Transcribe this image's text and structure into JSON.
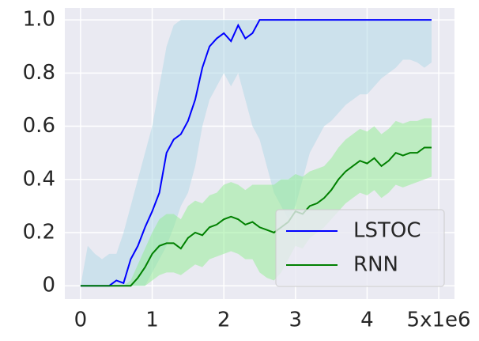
{
  "chart_data": {
    "type": "line",
    "x": [
      0,
      0.1,
      0.2,
      0.3,
      0.4,
      0.5,
      0.6,
      0.7,
      0.8,
      0.9,
      1.0,
      1.1,
      1.2,
      1.3,
      1.4,
      1.5,
      1.6,
      1.7,
      1.8,
      1.9,
      2.0,
      2.1,
      2.2,
      2.3,
      2.4,
      2.5,
      2.6,
      2.7,
      2.8,
      2.9,
      3.0,
      3.1,
      3.2,
      3.3,
      3.4,
      3.5,
      3.6,
      3.7,
      3.8,
      3.9,
      4.0,
      4.1,
      4.2,
      4.3,
      4.4,
      4.5,
      4.6,
      4.7,
      4.8,
      4.9
    ],
    "series": [
      {
        "name": "LSTOC",
        "color": "#0000ff",
        "band_color": "#add8e6",
        "values": [
          0,
          0,
          0,
          0,
          0,
          0.02,
          0.01,
          0.1,
          0.15,
          0.22,
          0.28,
          0.35,
          0.5,
          0.55,
          0.57,
          0.62,
          0.7,
          0.82,
          0.9,
          0.93,
          0.95,
          0.92,
          0.98,
          0.93,
          0.95,
          1,
          1,
          1,
          1,
          1,
          1,
          1,
          1,
          1,
          1,
          1,
          1,
          1,
          1,
          1,
          1,
          1,
          1,
          1,
          1,
          1,
          1,
          1,
          1,
          1
        ],
        "lower": [
          0,
          0,
          0,
          0,
          0,
          0,
          0,
          0,
          0,
          0,
          0.05,
          0.1,
          0.15,
          0.22,
          0.3,
          0.35,
          0.45,
          0.6,
          0.7,
          0.75,
          0.8,
          0.75,
          0.8,
          0.7,
          0.6,
          0.55,
          0.45,
          0.35,
          0.3,
          0.25,
          0.3,
          0.4,
          0.5,
          0.55,
          0.6,
          0.62,
          0.65,
          0.68,
          0.7,
          0.72,
          0.72,
          0.75,
          0.78,
          0.8,
          0.82,
          0.85,
          0.85,
          0.84,
          0.82,
          0.84
        ],
        "upper": [
          0,
          0.15,
          0.12,
          0.1,
          0.12,
          0.12,
          0.2,
          0.3,
          0.4,
          0.5,
          0.6,
          0.75,
          0.9,
          0.98,
          1,
          1,
          1,
          1,
          1,
          1,
          1,
          1,
          1,
          1,
          1,
          1,
          1,
          1,
          1,
          1,
          1,
          1,
          1,
          1,
          1,
          1,
          1,
          1,
          1,
          1,
          1,
          1,
          1,
          1,
          1,
          1,
          1,
          1,
          1,
          1
        ]
      },
      {
        "name": "RNN",
        "color": "#008000",
        "band_color": "#90ee90",
        "values": [
          0,
          0,
          0,
          0,
          0,
          0,
          0,
          0,
          0.03,
          0.07,
          0.12,
          0.15,
          0.16,
          0.16,
          0.14,
          0.18,
          0.2,
          0.19,
          0.22,
          0.23,
          0.25,
          0.26,
          0.25,
          0.23,
          0.24,
          0.22,
          0.21,
          0.2,
          0.22,
          0.24,
          0.28,
          0.27,
          0.3,
          0.31,
          0.33,
          0.36,
          0.4,
          0.43,
          0.45,
          0.47,
          0.46,
          0.48,
          0.45,
          0.47,
          0.5,
          0.49,
          0.5,
          0.5,
          0.52,
          0.52
        ],
        "lower": [
          0,
          0,
          0,
          0,
          0,
          0,
          0,
          0,
          0,
          0,
          0.02,
          0.04,
          0.05,
          0.05,
          0.04,
          0.06,
          0.08,
          0.07,
          0.1,
          0.11,
          0.12,
          0.13,
          0.12,
          0.1,
          0.1,
          0.05,
          0.03,
          0.02,
          0.05,
          0.1,
          0.15,
          0.14,
          0.18,
          0.2,
          0.22,
          0.25,
          0.28,
          0.31,
          0.33,
          0.35,
          0.34,
          0.36,
          0.33,
          0.35,
          0.38,
          0.37,
          0.38,
          0.39,
          0.4,
          0.41
        ],
        "upper": [
          0,
          0,
          0,
          0,
          0,
          0,
          0,
          0.02,
          0.08,
          0.14,
          0.2,
          0.25,
          0.27,
          0.27,
          0.25,
          0.3,
          0.32,
          0.31,
          0.34,
          0.35,
          0.38,
          0.39,
          0.38,
          0.36,
          0.38,
          0.38,
          0.38,
          0.38,
          0.4,
          0.4,
          0.42,
          0.41,
          0.43,
          0.44,
          0.45,
          0.48,
          0.52,
          0.55,
          0.57,
          0.59,
          0.58,
          0.6,
          0.57,
          0.59,
          0.62,
          0.61,
          0.62,
          0.62,
          0.63,
          0.63
        ]
      }
    ],
    "xlim": [
      -0.22,
      5.22
    ],
    "ylim": [
      -0.05,
      1.045
    ],
    "xticks": [
      0,
      1,
      2,
      3,
      4,
      {
        "value": 5,
        "label": "5x1e6"
      }
    ],
    "yticks": [
      0,
      0.2,
      0.4,
      0.6,
      0.8,
      {
        "value": 1,
        "label": "1.0"
      }
    ],
    "grid": true,
    "legend": "lower right"
  }
}
